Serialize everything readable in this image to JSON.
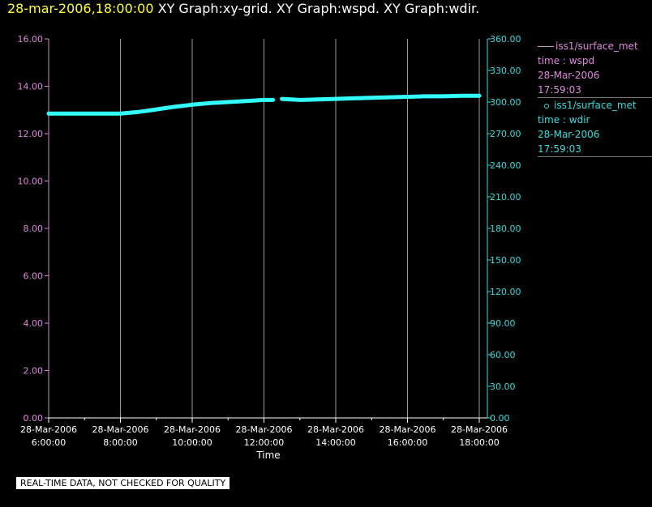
{
  "header": {
    "timestamp": "28-mar-2006,18:00:00",
    "titles": "XY Graph:xy-grid.  XY Graph:wspd.  XY Graph:wdir."
  },
  "colors": {
    "left_axis": "#dd88dd",
    "right_axis": "#33dddd",
    "series": "#33ffff",
    "grid": "#9a9a9a",
    "axis_text": "#ffffff"
  },
  "chart_data": {
    "type": "line",
    "xlabel": "Time",
    "x_ticks": [
      {
        "date": "28-Mar-2006",
        "time": "6:00:00"
      },
      {
        "date": "28-Mar-2006",
        "time": "8:00:00"
      },
      {
        "date": "28-Mar-2006",
        "time": "10:00:00"
      },
      {
        "date": "28-Mar-2006",
        "time": "12:00:00"
      },
      {
        "date": "28-Mar-2006",
        "time": "14:00:00"
      },
      {
        "date": "28-Mar-2006",
        "time": "16:00:00"
      },
      {
        "date": "28-Mar-2006",
        "time": "18:00:00"
      }
    ],
    "x_range_hours": [
      6,
      18
    ],
    "y_left": {
      "ylim": [
        0,
        16
      ],
      "ticks": [
        "0.00",
        "2.00",
        "4.00",
        "6.00",
        "8.00",
        "10.00",
        "12.00",
        "14.00",
        "16.00"
      ]
    },
    "y_right": {
      "ylim": [
        0,
        360
      ],
      "ticks": [
        "0.00",
        "30.00",
        "60.00",
        "90.00",
        "120.00",
        "150.00",
        "180.00",
        "210.00",
        "240.00",
        "270.00",
        "300.00",
        "330.00",
        "360.00"
      ]
    },
    "series": [
      {
        "name": "iss1/surface_met time : wdir",
        "axis": "right",
        "segments": [
          [
            [
              6.0,
              289
            ],
            [
              7.0,
              289
            ],
            [
              8.0,
              289
            ],
            [
              8.5,
              290.5
            ],
            [
              9.0,
              293
            ],
            [
              9.5,
              295.5
            ],
            [
              10.0,
              297.5
            ],
            [
              10.5,
              299
            ],
            [
              11.0,
              300
            ],
            [
              11.5,
              301
            ],
            [
              12.0,
              302
            ],
            [
              12.25,
              302
            ]
          ],
          [
            [
              12.5,
              303
            ],
            [
              13.0,
              302
            ],
            [
              13.5,
              302.5
            ],
            [
              14.0,
              303
            ],
            [
              14.5,
              303.5
            ],
            [
              15.0,
              304
            ],
            [
              15.5,
              304.5
            ],
            [
              16.0,
              305
            ],
            [
              16.5,
              305.5
            ],
            [
              17.0,
              305.5
            ],
            [
              17.5,
              306
            ],
            [
              18.0,
              306
            ]
          ]
        ]
      }
    ]
  },
  "legend": {
    "wspd": {
      "source": "iss1/surface_met",
      "var": "time : wspd",
      "date": "28-Mar-2006",
      "time": "17:59:03"
    },
    "wdir": {
      "source": "iss1/surface_met",
      "var": "time : wdir",
      "date": "28-Mar-2006",
      "time": "17:59:03"
    }
  },
  "notice": "REAL-TIME DATA, NOT CHECKED FOR QUALITY"
}
